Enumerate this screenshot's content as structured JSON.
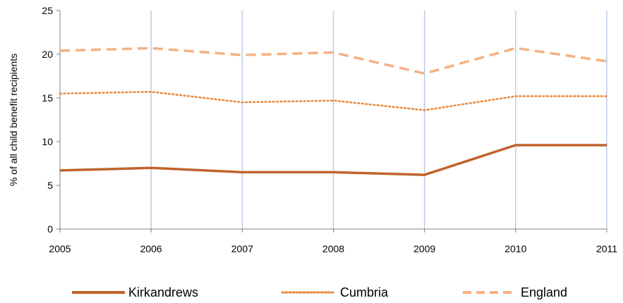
{
  "chart_data": {
    "type": "line",
    "title": "",
    "xlabel": "",
    "ylabel": "% of all child benefit recipients",
    "x": [
      "2005",
      "2006",
      "2007",
      "2008",
      "2009",
      "2010",
      "2011"
    ],
    "ylim": [
      0,
      25
    ],
    "yticks": [
      "0",
      "5",
      "10",
      "15",
      "20",
      "25"
    ],
    "grid": "vertical",
    "legend_position": "bottom",
    "series": [
      {
        "name": "Kirkandrews",
        "values": [
          6.7,
          7.0,
          6.5,
          6.5,
          6.2,
          9.6,
          9.6
        ],
        "color": "#c0632b",
        "style": "solid"
      },
      {
        "name": "Cumbria",
        "values": [
          15.5,
          15.7,
          14.5,
          14.7,
          13.6,
          15.2,
          15.2
        ],
        "color": "#e8873a",
        "style": "dotted"
      },
      {
        "name": "England",
        "values": [
          20.4,
          20.7,
          19.9,
          20.2,
          17.8,
          20.7,
          19.2
        ],
        "color": "#f4b183",
        "style": "dashed"
      }
    ]
  }
}
